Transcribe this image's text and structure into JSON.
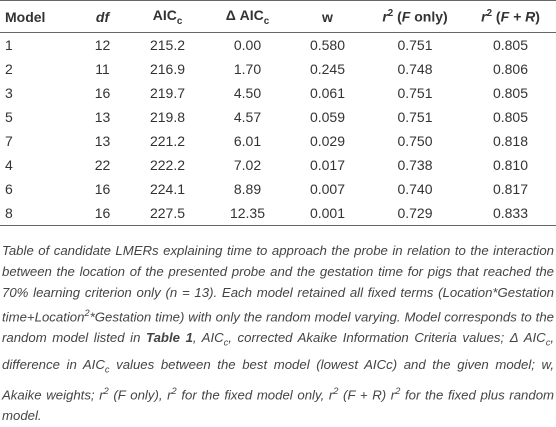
{
  "table": {
    "header": [
      [
        {
          "t": "Model",
          "f": ""
        }
      ],
      [
        {
          "t": "df",
          "f": "i"
        }
      ],
      [
        {
          "t": "AIC",
          "f": ""
        },
        {
          "t": "c",
          "f": "sub"
        }
      ],
      [
        {
          "t": "Δ AIC",
          "f": ""
        },
        {
          "t": "c",
          "f": "sub"
        }
      ],
      [
        {
          "t": "w",
          "f": ""
        }
      ],
      [
        {
          "t": "r",
          "f": "i"
        },
        {
          "t": "2",
          "f": "sup"
        },
        {
          "t": " (",
          "f": ""
        },
        {
          "t": "F",
          "f": "i"
        },
        {
          "t": " only)",
          "f": ""
        }
      ],
      [
        {
          "t": "r",
          "f": "i"
        },
        {
          "t": "2",
          "f": "sup"
        },
        {
          "t": " (",
          "f": ""
        },
        {
          "t": "F + R",
          "f": "i"
        },
        {
          "t": ")",
          "f": ""
        }
      ]
    ],
    "rows": [
      [
        "1",
        "12",
        "215.2",
        "0.00",
        "0.580",
        "0.751",
        "0.805"
      ],
      [
        "2",
        "11",
        "216.9",
        "1.70",
        "0.245",
        "0.748",
        "0.806"
      ],
      [
        "3",
        "16",
        "219.7",
        "4.50",
        "0.061",
        "0.751",
        "0.805"
      ],
      [
        "5",
        "13",
        "219.8",
        "4.57",
        "0.059",
        "0.751",
        "0.805"
      ],
      [
        "7",
        "13",
        "221.2",
        "6.01",
        "0.029",
        "0.750",
        "0.818"
      ],
      [
        "4",
        "22",
        "222.2",
        "7.02",
        "0.017",
        "0.738",
        "0.810"
      ],
      [
        "6",
        "16",
        "224.1",
        "8.89",
        "0.007",
        "0.740",
        "0.817"
      ],
      [
        "8",
        "16",
        "227.5",
        "12.35",
        "0.001",
        "0.729",
        "0.833"
      ]
    ]
  },
  "caption": [
    {
      "t": "Table of candidate LMERs explaining time to approach the probe in relation to the interaction between the location of the presented probe and the gestation time for pigs that reached the 70% learning criterion only (n = 13). Each model retained all fixed terms (Location*Gestation time+Location",
      "f": ""
    },
    {
      "t": "2",
      "f": "sup"
    },
    {
      "t": "*Gestation time) with only the random model varying. Model corresponds to the random model listed in ",
      "f": ""
    },
    {
      "t": "Table 1",
      "f": "b"
    },
    {
      "t": ", AIC",
      "f": ""
    },
    {
      "t": "c",
      "f": "sub"
    },
    {
      "t": ", corrected Akaike Information Criteria values; Δ AIC",
      "f": ""
    },
    {
      "t": "c",
      "f": "sub"
    },
    {
      "t": ", difference in AIC",
      "f": ""
    },
    {
      "t": "c",
      "f": "sub"
    },
    {
      "t": " values between the best model (lowest AICc) and the given model; w, Akaike weights; r",
      "f": ""
    },
    {
      "t": "2",
      "f": "sup"
    },
    {
      "t": " (F only), r",
      "f": ""
    },
    {
      "t": "2",
      "f": "sup"
    },
    {
      "t": " for the fixed model only, r",
      "f": ""
    },
    {
      "t": "2",
      "f": "sup"
    },
    {
      "t": " (F + R) r",
      "f": ""
    },
    {
      "t": "2",
      "f": "sup"
    },
    {
      "t": " for the fixed plus random model.",
      "f": ""
    }
  ]
}
